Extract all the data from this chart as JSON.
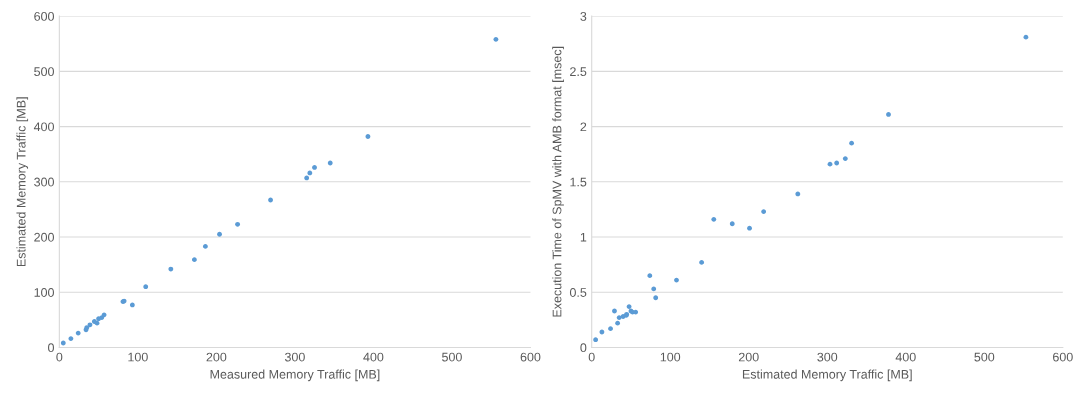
{
  "chart_data": [
    {
      "type": "scatter",
      "xlabel": "Measured Memory Traffic [MB]",
      "ylabel": "Estimated Memory Traffic [MB]",
      "xlim": [
        0,
        600
      ],
      "xticks": [
        0,
        100,
        200,
        300,
        400,
        500,
        600
      ],
      "ylim": [
        0,
        600
      ],
      "yticks": [
        0,
        100,
        200,
        300,
        400,
        500,
        600
      ],
      "grid": "y",
      "marker": "circle",
      "series": [
        {
          "color": "#5b9bd5",
          "x": [
            5,
            14.7,
            24,
            34,
            35,
            39,
            44.6,
            48,
            50,
            54,
            57,
            81,
            82.5,
            93,
            110,
            142,
            172,
            186,
            204,
            227,
            269,
            315,
            319,
            325,
            345,
            393,
            556
          ],
          "values": [
            8,
            16,
            26,
            32,
            36,
            41,
            47,
            44,
            52,
            54,
            59,
            83,
            84,
            77,
            110,
            142,
            159,
            183,
            205,
            223,
            267,
            307,
            316,
            326,
            334,
            382,
            558
          ]
        }
      ]
    },
    {
      "type": "scatter",
      "xlabel": "Estimated Memory Traffic [MB]",
      "ylabel": "Execution Time of SpMV with AMB format [msec]",
      "xlim": [
        0,
        600
      ],
      "xticks": [
        0,
        100,
        200,
        300,
        400,
        500,
        600
      ],
      "ylim": [
        0,
        3
      ],
      "yticks": [
        0,
        0.5,
        1,
        1.5,
        2,
        2.5,
        3
      ],
      "grid": "y",
      "marker": "circle",
      "series": [
        {
          "color": "#5b9bd5",
          "x": [
            5,
            13,
            24,
            29,
            33,
            35,
            40,
            44,
            44.5,
            47.6,
            50,
            52,
            56,
            74,
            79,
            81.5,
            108,
            140,
            155.5,
            179,
            201,
            219,
            262.5,
            303.5,
            312,
            323,
            331,
            378,
            553
          ],
          "values": [
            0.07,
            0.14,
            0.17,
            0.33,
            0.22,
            0.27,
            0.28,
            0.29,
            0.3,
            0.37,
            0.33,
            0.32,
            0.32,
            0.65,
            0.53,
            0.45,
            0.61,
            0.77,
            1.16,
            1.12,
            1.08,
            1.23,
            1.39,
            1.66,
            1.67,
            1.71,
            1.85,
            2.11,
            2.81
          ]
        }
      ]
    }
  ]
}
